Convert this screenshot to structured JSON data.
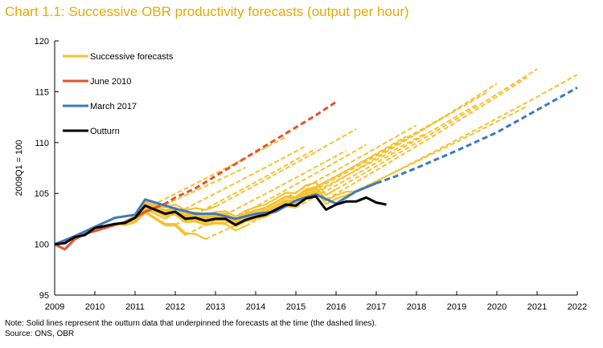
{
  "chart_data": {
    "type": "line",
    "title": "Chart 1.1: Successive OBR productivity forecasts (output per hour)",
    "ylabel": "2009Q1 = 100",
    "xlabel": "",
    "ylim": [
      95,
      120
    ],
    "xlim": [
      2009,
      2022
    ],
    "yticks": [
      95,
      100,
      105,
      110,
      115,
      120
    ],
    "xticks": [
      2009,
      2010,
      2011,
      2012,
      2013,
      2014,
      2015,
      2016,
      2017,
      2018,
      2019,
      2020,
      2021,
      2022
    ],
    "grid": false,
    "legend_position": "top-left",
    "legend": [
      {
        "label": "Successive forecasts",
        "color": "#f5c131"
      },
      {
        "label": "June 2010",
        "color": "#e2542a"
      },
      {
        "label": "March 2017",
        "color": "#3d78bf"
      },
      {
        "label": "Outturn",
        "color": "#000000"
      }
    ],
    "series": [
      {
        "name": "Outturn",
        "color": "#000000",
        "x": [
          2009,
          2009.25,
          2009.5,
          2009.75,
          2010,
          2010.25,
          2010.5,
          2010.75,
          2011,
          2011.25,
          2011.5,
          2011.75,
          2012,
          2012.25,
          2012.5,
          2012.75,
          2013,
          2013.25,
          2013.5,
          2013.75,
          2014,
          2014.25,
          2014.5,
          2014.75,
          2015,
          2015.25,
          2015.5,
          2015.75,
          2016,
          2016.25,
          2016.5,
          2016.75,
          2017,
          2017.25
        ],
        "values": [
          100,
          100.1,
          100.7,
          100.9,
          101.6,
          101.8,
          102,
          102.1,
          102.6,
          103.8,
          103.4,
          103,
          103.2,
          102.5,
          102.6,
          102.3,
          102.5,
          102.5,
          101.9,
          102.4,
          102.7,
          102.9,
          103.4,
          103.9,
          103.8,
          104.5,
          104.7,
          103.4,
          103.9,
          104.2,
          104.2,
          104.6,
          104.1,
          103.9
        ]
      },
      {
        "name": "June 2010",
        "color": "#e2542a",
        "x": [
          2009,
          2009.25,
          2009.5,
          2009.75,
          2010,
          2010.25,
          2010.5,
          2010.75,
          2011,
          2011.25,
          2011.5,
          2011.75,
          2012,
          2012.5,
          2013,
          2013.5,
          2014,
          2014.5,
          2015,
          2015.5,
          2016
        ],
        "values": [
          100,
          99.5,
          100.5,
          101,
          101.3,
          101.6,
          101.9,
          102.2,
          102.6,
          103.2,
          103.6,
          104,
          104.6,
          105.5,
          106.7,
          107.9,
          109.1,
          110.3,
          111.5,
          112.7,
          114
        ]
      },
      {
        "name": "March 2017",
        "color": "#3d78bf",
        "x": [
          2009,
          2009.5,
          2010,
          2010.5,
          2011,
          2011.25,
          2011.5,
          2012,
          2012.5,
          2013,
          2013.5,
          2014,
          2014.5,
          2015,
          2015.5,
          2016,
          2016.5,
          2017,
          2017.5,
          2018,
          2019,
          2020,
          2021,
          2022
        ],
        "values": [
          100,
          100.8,
          101.7,
          102.6,
          102.9,
          104.4,
          104.1,
          103.5,
          103,
          103,
          102.5,
          103,
          103.2,
          104.3,
          104.9,
          104,
          105.2,
          106,
          106.7,
          107.5,
          109.2,
          111,
          113.2,
          115.4
        ]
      }
    ],
    "dashed_start_x": {
      "June 2010": 2011.5,
      "March 2017": 2017
    }
  },
  "footnotes": {
    "note": "Note: Solid lines represent the outturn data that underpinned the forecasts at the time (the dashed lines).",
    "source": "Source: ONS, OBR"
  }
}
